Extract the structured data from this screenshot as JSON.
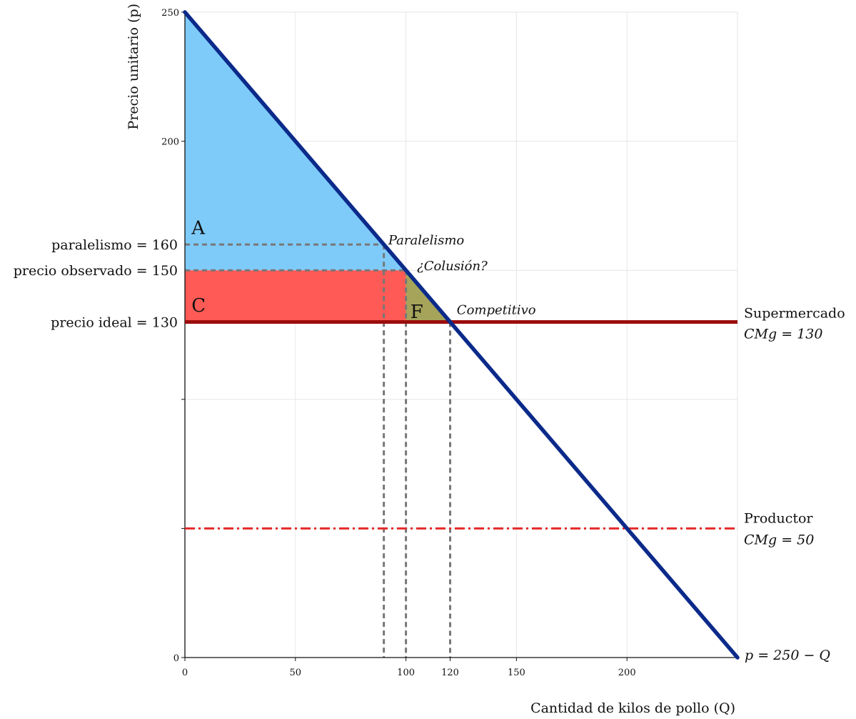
{
  "chart_data": {
    "type": "line",
    "title": "",
    "xlabel": "Cantidad de kilos de pollo (Q)",
    "ylabel": "Precio unitario (p)",
    "xlim": [
      0,
      250
    ],
    "ylim": [
      0,
      250
    ],
    "x_ticks": [
      {
        "value": 0,
        "label": "0"
      },
      {
        "value": 50,
        "label": "50"
      },
      {
        "value": 100,
        "label": "100"
      },
      {
        "value": 120,
        "label": "120"
      },
      {
        "value": 150,
        "label": "150"
      },
      {
        "value": 200,
        "label": "200"
      }
    ],
    "y_ticks": [
      {
        "value": 0,
        "label": "0"
      },
      {
        "value": 50,
        "label": ""
      },
      {
        "value": 100,
        "label": ""
      },
      {
        "value": 200,
        "label": "200"
      },
      {
        "value": 250,
        "label": "250"
      }
    ],
    "grid": true,
    "demand": {
      "label": "p = 250 − Q",
      "points": [
        [
          0,
          250
        ],
        [
          250,
          0
        ]
      ],
      "color": "#0b2a8a"
    },
    "supermercado": {
      "price": 130,
      "label": "Supermercado",
      "sublabel": "CMg = 130",
      "color": "#9b0d0d"
    },
    "productor": {
      "price": 50,
      "label": "Productor",
      "sublabel": "CMg = 50",
      "color": "#e52a2a"
    },
    "price_levels": [
      {
        "price": 160,
        "quantity": 90,
        "label": "paralelismo = 160"
      },
      {
        "price": 150,
        "quantity": 100,
        "label": "precio observado = 150"
      },
      {
        "price": 130,
        "quantity": 120,
        "label": "precio ideal = 130"
      }
    ],
    "areas": [
      {
        "name": "A",
        "color": "#7ecbfa"
      },
      {
        "name": "C",
        "color": "#ff5a55"
      },
      {
        "name": "F",
        "color": "#a5a45a"
      }
    ],
    "annotations": [
      {
        "text": "Paralelismo",
        "x": 92,
        "y": 160
      },
      {
        "text": "¿Colusión?",
        "x": 105,
        "y": 150
      },
      {
        "text": "Competitivo",
        "x": 123,
        "y": 133
      }
    ],
    "dashed_color": "#777777"
  }
}
